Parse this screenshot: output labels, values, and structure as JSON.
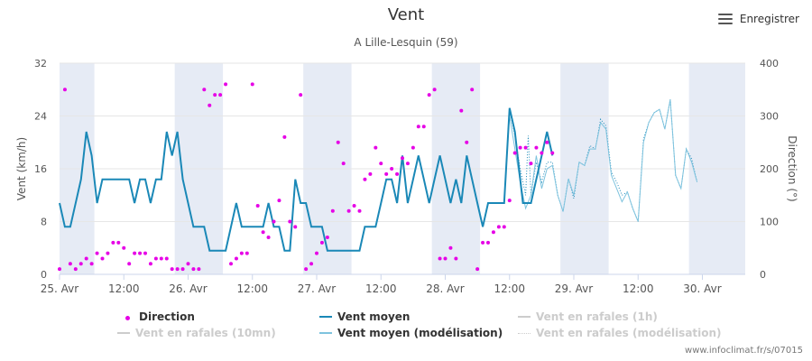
{
  "header": {
    "title": "Vent",
    "subtitle": "A Lille-Lesquin (59)",
    "menu_label": "Enregistrer"
  },
  "credits": "www.infoclimat.fr/s/07015",
  "colors": {
    "direction": "#e600e6",
    "vent_moyen": "#1a88b7",
    "vent_moyen_model": "#7ec3de",
    "rafales_model": "#1a88b7",
    "band": "#e6ebf5",
    "legend_off": "#cccccc"
  },
  "legend": [
    {
      "key": "direction",
      "label": "Direction",
      "active": true,
      "style": "dot"
    },
    {
      "key": "vent_moyen",
      "label": "Vent moyen",
      "active": true,
      "style": "line"
    },
    {
      "key": "rafales_1h",
      "label": "Vent en rafales (1h)",
      "active": false,
      "style": "line"
    },
    {
      "key": "rafales_10mn",
      "label": "Vent en rafales (10mn)",
      "active": false,
      "style": "line"
    },
    {
      "key": "vent_moyen_model",
      "label": "Vent moyen (modélisation)",
      "active": true,
      "style": "line"
    },
    {
      "key": "rafales_model",
      "label": "Vent en rafales (modélisation)",
      "active": false,
      "style": "dotted"
    }
  ],
  "chart_data": {
    "type": "line",
    "x_unit": "hours since 25. Avr 00:00",
    "xlim": [
      0,
      128
    ],
    "xticks": [
      {
        "x": 0,
        "label": "25. Avr"
      },
      {
        "x": 12,
        "label": "12:00"
      },
      {
        "x": 24,
        "label": "26. Avr"
      },
      {
        "x": 36,
        "label": "12:00"
      },
      {
        "x": 48,
        "label": "27. Avr"
      },
      {
        "x": 60,
        "label": "12:00"
      },
      {
        "x": 72,
        "label": "28. Avr"
      },
      {
        "x": 84,
        "label": "12:00"
      },
      {
        "x": 96,
        "label": "29. Avr"
      },
      {
        "x": 108,
        "label": "12:00"
      },
      {
        "x": 120,
        "label": "30. Avr"
      }
    ],
    "ylabel_left": "Vent (km/h)",
    "ylim_left": [
      0,
      32
    ],
    "yticks_left": [
      0,
      8,
      16,
      24,
      32
    ],
    "ylabel_right": "Direction (°)",
    "ylim_right": [
      0,
      400
    ],
    "yticks_right": [
      0,
      100,
      200,
      300,
      400
    ],
    "night_bands": [
      [
        0,
        6.5
      ],
      [
        21.5,
        30.5
      ],
      [
        45.5,
        54.5
      ],
      [
        69.5,
        78.5
      ],
      [
        93.5,
        102.5
      ],
      [
        117.5,
        128
      ]
    ],
    "series": [
      {
        "name": "Vent moyen",
        "axis": "left",
        "points": [
          [
            0,
            10.8
          ],
          [
            1,
            7.2
          ],
          [
            2,
            7.2
          ],
          [
            4,
            14.4
          ],
          [
            5,
            21.6
          ],
          [
            6,
            18
          ],
          [
            7,
            10.8
          ],
          [
            8,
            14.4
          ],
          [
            9,
            14.4
          ],
          [
            10,
            14.4
          ],
          [
            11,
            14.4
          ],
          [
            12,
            14.4
          ],
          [
            13,
            14.4
          ],
          [
            14,
            10.8
          ],
          [
            15,
            14.4
          ],
          [
            16,
            14.4
          ],
          [
            17,
            10.8
          ],
          [
            18,
            14.4
          ],
          [
            19,
            14.4
          ],
          [
            20,
            21.6
          ],
          [
            21,
            18
          ],
          [
            22,
            21.6
          ],
          [
            23,
            14.4
          ],
          [
            24,
            10.8
          ],
          [
            25,
            7.2
          ],
          [
            26,
            7.2
          ],
          [
            27,
            7.2
          ],
          [
            28,
            3.6
          ],
          [
            29,
            3.6
          ],
          [
            30,
            3.6
          ],
          [
            31,
            3.6
          ],
          [
            32,
            7.2
          ],
          [
            33,
            10.8
          ],
          [
            34,
            7.2
          ],
          [
            35,
            7.2
          ],
          [
            36,
            7.2
          ],
          [
            37,
            7.2
          ],
          [
            38,
            7.2
          ],
          [
            39,
            10.8
          ],
          [
            40,
            7.2
          ],
          [
            41,
            7.2
          ],
          [
            42,
            3.6
          ],
          [
            43,
            3.6
          ],
          [
            44,
            14.4
          ],
          [
            45,
            10.8
          ],
          [
            46,
            10.8
          ],
          [
            47,
            7.2
          ],
          [
            48,
            7.2
          ],
          [
            49,
            7.2
          ],
          [
            50,
            3.6
          ],
          [
            51,
            3.6
          ],
          [
            52,
            3.6
          ],
          [
            53,
            3.6
          ],
          [
            54,
            3.6
          ],
          [
            55,
            3.6
          ],
          [
            56,
            3.6
          ],
          [
            57,
            7.2
          ],
          [
            58,
            7.2
          ],
          [
            59,
            7.2
          ],
          [
            60,
            10.8
          ],
          [
            61,
            14.4
          ],
          [
            62,
            14.4
          ],
          [
            63,
            10.8
          ],
          [
            64,
            18
          ],
          [
            65,
            10.8
          ],
          [
            66,
            14.4
          ],
          [
            67,
            18
          ],
          [
            68,
            14.4
          ],
          [
            69,
            10.8
          ],
          [
            70,
            14.4
          ],
          [
            71,
            18
          ],
          [
            72,
            14.4
          ],
          [
            73,
            10.8
          ],
          [
            74,
            14.4
          ],
          [
            75,
            10.8
          ],
          [
            76,
            18
          ],
          [
            77,
            14.4
          ],
          [
            78,
            10.8
          ],
          [
            79,
            7.2
          ],
          [
            80,
            10.8
          ],
          [
            81,
            10.8
          ],
          [
            82,
            10.8
          ],
          [
            83,
            10.8
          ],
          [
            84,
            25.2
          ],
          [
            85,
            21.6
          ],
          [
            86,
            14.4
          ],
          [
            86.5,
            10.8
          ],
          [
            87,
            10.8
          ],
          [
            88,
            10.8
          ],
          [
            89,
            14.4
          ],
          [
            90,
            18
          ],
          [
            91,
            21.6
          ],
          [
            92,
            18
          ]
        ]
      },
      {
        "name": "Vent moyen (modélisation)",
        "axis": "left",
        "points": [
          [
            84,
            24
          ],
          [
            86,
            14
          ],
          [
            87,
            10
          ],
          [
            88,
            12
          ],
          [
            89,
            18
          ],
          [
            90,
            13
          ],
          [
            91,
            16
          ],
          [
            92,
            16.5
          ],
          [
            93,
            12
          ],
          [
            94,
            9.5
          ],
          [
            95,
            14.5
          ],
          [
            96,
            12
          ],
          [
            97,
            17
          ],
          [
            98,
            16.5
          ],
          [
            99,
            19
          ],
          [
            100,
            19
          ],
          [
            101,
            23
          ],
          [
            102,
            22
          ],
          [
            103,
            15
          ],
          [
            104,
            13
          ],
          [
            105,
            11
          ],
          [
            106,
            12.5
          ],
          [
            107,
            10
          ],
          [
            108,
            8
          ],
          [
            109,
            20
          ],
          [
            110,
            23
          ],
          [
            111,
            24.5
          ],
          [
            112,
            25
          ],
          [
            113,
            22
          ],
          [
            114,
            26.5
          ],
          [
            115,
            15
          ],
          [
            116,
            13
          ],
          [
            117,
            19
          ],
          [
            118,
            17
          ],
          [
            119,
            14
          ]
        ]
      },
      {
        "name": "Vent en rafales (modélisation)",
        "axis": "left",
        "points": [
          [
            84,
            25
          ],
          [
            85,
            21
          ],
          [
            86,
            16
          ],
          [
            87,
            12
          ],
          [
            87.5,
            21
          ],
          [
            88,
            12
          ],
          [
            89,
            17
          ],
          [
            90,
            14
          ],
          [
            91,
            17
          ],
          [
            92,
            17
          ],
          [
            93,
            12
          ],
          [
            94,
            9.5
          ],
          [
            95,
            14.5
          ],
          [
            96,
            11.5
          ],
          [
            97,
            17
          ],
          [
            98,
            16.5
          ],
          [
            99,
            19.5
          ],
          [
            100,
            19
          ],
          [
            101,
            23.5
          ],
          [
            102,
            22.5
          ],
          [
            103,
            15.5
          ],
          [
            104,
            14
          ],
          [
            105,
            12
          ],
          [
            106,
            12.5
          ],
          [
            107,
            10
          ],
          [
            108,
            8
          ],
          [
            109,
            20.5
          ],
          [
            110,
            23
          ],
          [
            111,
            24.5
          ],
          [
            112,
            25
          ],
          [
            113,
            22
          ],
          [
            114,
            26.5
          ],
          [
            115,
            15
          ],
          [
            116,
            13
          ],
          [
            117,
            19
          ],
          [
            118,
            17.5
          ],
          [
            119,
            14
          ]
        ]
      },
      {
        "name": "Direction",
        "axis": "right",
        "points": [
          [
            0,
            10
          ],
          [
            1,
            350
          ],
          [
            2,
            20
          ],
          [
            3,
            10
          ],
          [
            4,
            20
          ],
          [
            5,
            30
          ],
          [
            6,
            20
          ],
          [
            7,
            40
          ],
          [
            8,
            30
          ],
          [
            9,
            40
          ],
          [
            10,
            60
          ],
          [
            11,
            60
          ],
          [
            12,
            50
          ],
          [
            13,
            20
          ],
          [
            14,
            40
          ],
          [
            15,
            40
          ],
          [
            16,
            40
          ],
          [
            17,
            20
          ],
          [
            18,
            30
          ],
          [
            19,
            30
          ],
          [
            20,
            30
          ],
          [
            21,
            10
          ],
          [
            22,
            10
          ],
          [
            23,
            10
          ],
          [
            24,
            20
          ],
          [
            25,
            10
          ],
          [
            26,
            10
          ],
          [
            27,
            350
          ],
          [
            28,
            320
          ],
          [
            29,
            340
          ],
          [
            30,
            340
          ],
          [
            31,
            360
          ],
          [
            32,
            20
          ],
          [
            33,
            30
          ],
          [
            34,
            40
          ],
          [
            35,
            40
          ],
          [
            36,
            360
          ],
          [
            37,
            130
          ],
          [
            38,
            80
          ],
          [
            39,
            70
          ],
          [
            40,
            100
          ],
          [
            41,
            140
          ],
          [
            42,
            260
          ],
          [
            43,
            100
          ],
          [
            44,
            90
          ],
          [
            45,
            340
          ],
          [
            46,
            10
          ],
          [
            47,
            20
          ],
          [
            48,
            40
          ],
          [
            49,
            60
          ],
          [
            50,
            70
          ],
          [
            51,
            120
          ],
          [
            52,
            250
          ],
          [
            53,
            210
          ],
          [
            54,
            120
          ],
          [
            55,
            130
          ],
          [
            56,
            120
          ],
          [
            57,
            180
          ],
          [
            58,
            190
          ],
          [
            59,
            240
          ],
          [
            60,
            210
          ],
          [
            61,
            190
          ],
          [
            62,
            200
          ],
          [
            63,
            190
          ],
          [
            64,
            220
          ],
          [
            65,
            210
          ],
          [
            66,
            240
          ],
          [
            67,
            280
          ],
          [
            68,
            280
          ],
          [
            69,
            340
          ],
          [
            70,
            350
          ],
          [
            71,
            30
          ],
          [
            72,
            30
          ],
          [
            73,
            50
          ],
          [
            74,
            30
          ],
          [
            75,
            310
          ],
          [
            76,
            250
          ],
          [
            77,
            350
          ],
          [
            78,
            10
          ],
          [
            79,
            60
          ],
          [
            80,
            60
          ],
          [
            81,
            80
          ],
          [
            82,
            90
          ],
          [
            83,
            90
          ],
          [
            84,
            140
          ],
          [
            85,
            230
          ],
          [
            86,
            240
          ],
          [
            87,
            240
          ],
          [
            88,
            210
          ],
          [
            89,
            240
          ],
          [
            90,
            230
          ],
          [
            91,
            250
          ],
          [
            92,
            230
          ]
        ]
      }
    ]
  }
}
